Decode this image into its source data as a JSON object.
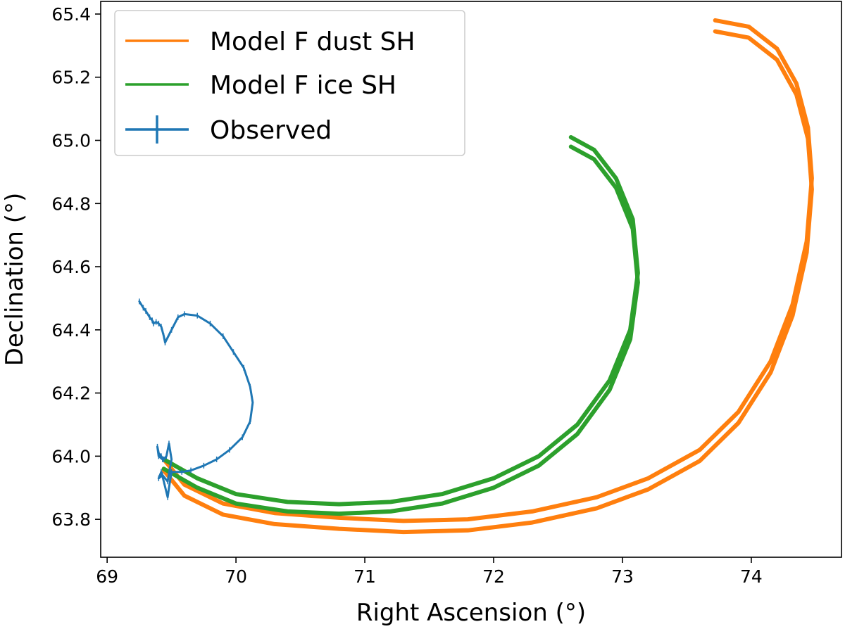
{
  "chart_data": {
    "type": "line",
    "title": "",
    "xlabel": "Right Ascension (°)",
    "ylabel": "Declination (°)",
    "xlim": [
      68.95,
      74.7
    ],
    "ylim": [
      63.68,
      65.44
    ],
    "xticks": [
      69,
      70,
      71,
      72,
      73,
      74
    ],
    "xtick_labels": [
      "69",
      "70",
      "71",
      "72",
      "73",
      "74"
    ],
    "yticks": [
      63.8,
      64.0,
      64.2,
      64.4,
      64.6,
      64.8,
      65.0,
      65.2,
      65.4
    ],
    "ytick_labels": [
      "63.8",
      "64.0",
      "64.2",
      "64.4",
      "64.6",
      "64.8",
      "65.0",
      "65.2",
      "65.4"
    ],
    "grid": false,
    "legend_position": "top-left",
    "series": [
      {
        "name": "Model F dust SH",
        "color": "#ff7f0e",
        "band_width": 0.035,
        "x": [
          69.44,
          69.6,
          69.9,
          70.3,
          70.8,
          71.3,
          71.8,
          72.3,
          72.8,
          73.2,
          73.6,
          73.9,
          74.15,
          74.32,
          74.43,
          74.47,
          74.44,
          74.35,
          74.2,
          73.98,
          73.72
        ],
        "y": [
          63.99,
          63.91,
          63.85,
          63.82,
          63.805,
          63.795,
          63.8,
          63.825,
          63.87,
          63.93,
          64.02,
          64.14,
          64.3,
          64.48,
          64.68,
          64.88,
          65.04,
          65.18,
          65.29,
          65.36,
          65.38
        ]
      },
      {
        "name": "Model F ice SH",
        "color": "#2ca02c",
        "band_width": 0.03,
        "x": [
          69.44,
          69.7,
          70.0,
          70.4,
          70.8,
          71.2,
          71.6,
          72.0,
          72.35,
          72.65,
          72.9,
          73.06,
          73.12,
          73.08,
          72.95,
          72.78,
          72.6
        ],
        "y": [
          63.99,
          63.93,
          63.88,
          63.855,
          63.848,
          63.855,
          63.88,
          63.93,
          64.0,
          64.1,
          64.24,
          64.4,
          64.58,
          64.75,
          64.88,
          64.97,
          65.01
        ]
      },
      {
        "name": "Observed",
        "color": "#1f77b4",
        "marker": "error bars",
        "x": [
          69.25,
          69.28,
          69.3,
          69.33,
          69.35,
          69.36,
          69.38,
          69.4,
          69.42,
          69.44,
          69.45,
          69.5,
          69.55,
          69.6,
          69.7,
          69.8,
          69.9,
          69.98,
          70.06,
          70.11,
          70.13,
          70.11,
          70.05,
          69.95,
          69.85,
          69.75,
          69.65,
          69.58,
          69.5,
          69.48,
          69.47,
          69.44,
          69.42,
          69.4,
          69.43,
          69.47,
          69.5,
          69.48,
          69.46,
          69.44,
          69.42,
          69.4,
          69.39,
          69.4,
          69.43
        ],
        "y": [
          64.49,
          64.47,
          64.46,
          64.44,
          64.43,
          64.42,
          64.425,
          64.42,
          64.41,
          64.38,
          64.36,
          64.4,
          64.44,
          64.45,
          64.445,
          64.42,
          64.38,
          64.33,
          64.28,
          64.22,
          64.17,
          64.11,
          64.06,
          64.02,
          63.99,
          63.97,
          63.955,
          63.95,
          63.95,
          63.9,
          63.87,
          63.92,
          63.95,
          63.93,
          63.94,
          63.92,
          63.99,
          64.04,
          64.0,
          63.99,
          64.0,
          64.01,
          64.03,
          64.0,
          63.99
        ]
      }
    ]
  }
}
